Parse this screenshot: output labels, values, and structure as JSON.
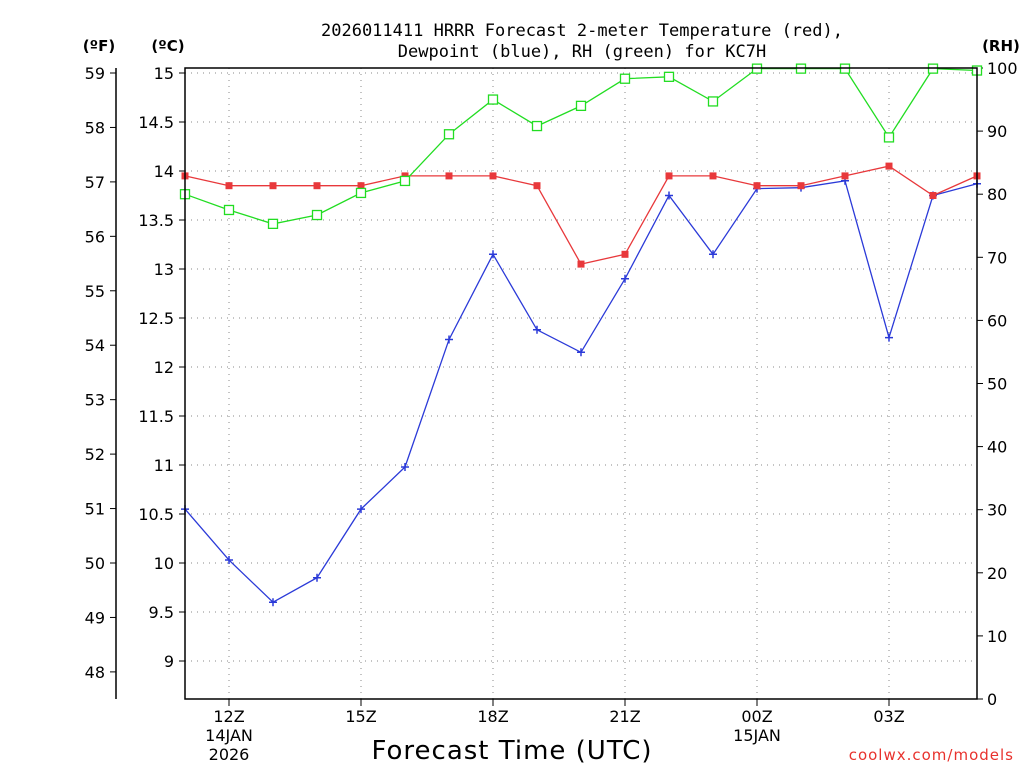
{
  "chart_data": {
    "type": "line",
    "title_line1": "2026011411 HRRR Forecast 2-meter Temperature (red),",
    "title_line2": "Dewpoint (blue), RH (green) for KC7H",
    "xlabel": "Forecast Time (UTC)",
    "credit": "coolwx.com/models",
    "units": {
      "fahrenheit": "(ºF)",
      "celsius": "(ºC)",
      "rh": "(RH)"
    },
    "xlim": [
      11,
      29
    ],
    "ylim_c": [
      8.6,
      15.05
    ],
    "ylim_rh": [
      0,
      100
    ],
    "x_ticks": [
      {
        "x": 12,
        "label": "12Z",
        "sub1": "14JAN",
        "sub2": "2026"
      },
      {
        "x": 15,
        "label": "15Z",
        "sub1": "",
        "sub2": ""
      },
      {
        "x": 18,
        "label": "18Z",
        "sub1": "",
        "sub2": ""
      },
      {
        "x": 21,
        "label": "21Z",
        "sub1": "",
        "sub2": ""
      },
      {
        "x": 24,
        "label": "00Z",
        "sub1": "15JAN",
        "sub2": ""
      },
      {
        "x": 27,
        "label": "03Z",
        "sub1": "",
        "sub2": ""
      }
    ],
    "celsius_ticks": [
      "9",
      "9.5",
      "10",
      "10.5",
      "11",
      "11.5",
      "12",
      "12.5",
      "13",
      "13.5",
      "14",
      "14.5",
      "15"
    ],
    "fahrenheit_ticks": [
      "48",
      "49",
      "50",
      "51",
      "52",
      "53",
      "54",
      "55",
      "56",
      "57",
      "58",
      "59"
    ],
    "rh_ticks": [
      "0",
      "10",
      "20",
      "30",
      "40",
      "50",
      "60",
      "70",
      "80",
      "90",
      "100"
    ],
    "x": [
      11,
      12,
      13,
      14,
      15,
      16,
      17,
      18,
      19,
      20,
      21,
      22,
      23,
      24,
      25,
      26,
      27,
      28,
      29
    ],
    "series": [
      {
        "name": "Temperature",
        "unit": "C",
        "color": "#e8383b",
        "marker": "filled-square",
        "values": [
          13.95,
          13.85,
          13.85,
          13.85,
          13.85,
          13.95,
          13.95,
          13.95,
          13.85,
          13.05,
          13.15,
          13.95,
          13.95,
          13.85,
          13.85,
          13.95,
          14.05,
          13.75,
          13.95
        ]
      },
      {
        "name": "Dewpoint",
        "unit": "C",
        "color": "#2b3ad8",
        "marker": "plus",
        "values": [
          10.55,
          10.03,
          9.6,
          9.85,
          10.55,
          10.98,
          12.28,
          13.15,
          12.38,
          12.15,
          12.9,
          13.75,
          13.15,
          13.82,
          13.83,
          13.9,
          12.3,
          13.75,
          13.87
        ]
      },
      {
        "name": "RH",
        "unit": "%",
        "color": "#22dd22",
        "marker": "open-square",
        "values": [
          80.0,
          77.5,
          75.3,
          76.7,
          80.2,
          82.1,
          89.5,
          95.0,
          90.8,
          94.0,
          98.3,
          98.6,
          94.7,
          99.9,
          99.9,
          99.9,
          89.0,
          99.9,
          99.6
        ]
      }
    ]
  }
}
